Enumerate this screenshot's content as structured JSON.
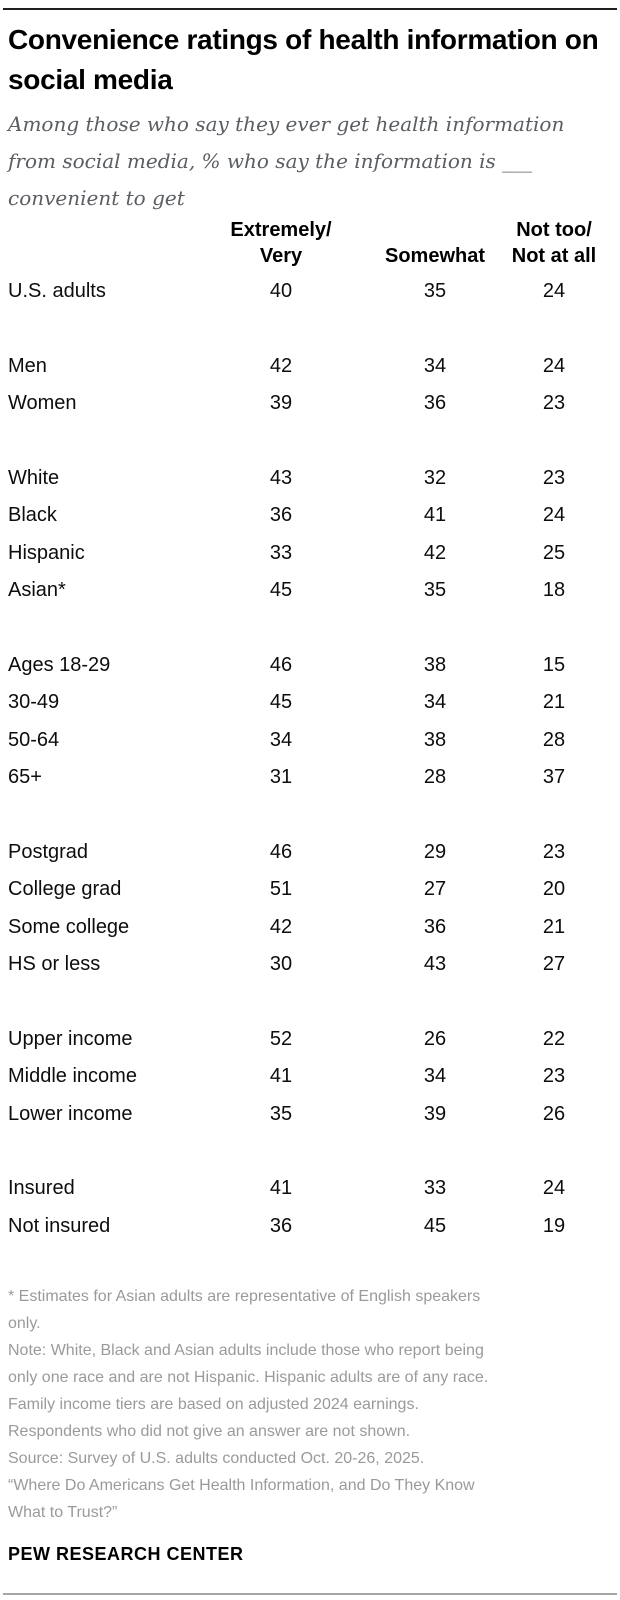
{
  "chart_data": {
    "type": "table",
    "title": "Convenience ratings of health information on social media",
    "subtitle": "Among those who say they ever get health information from social media, % who say the information is ___ convenient to get",
    "columns": [
      {
        "label": "Extremely/Very",
        "lines": [
          "Extremely/",
          "Very"
        ]
      },
      {
        "label": "Somewhat",
        "lines": [
          "Somewhat"
        ]
      },
      {
        "label": "Not too/Not at all",
        "lines": [
          "Not too/",
          "Not at all"
        ]
      }
    ],
    "groups": [
      {
        "rows": [
          {
            "label": "U.S. adults",
            "values": [
              40,
              35,
              24
            ]
          }
        ]
      },
      {
        "rows": [
          {
            "label": "Men",
            "values": [
              42,
              34,
              24
            ]
          },
          {
            "label": "Women",
            "values": [
              39,
              36,
              23
            ]
          }
        ]
      },
      {
        "rows": [
          {
            "label": "White",
            "values": [
              43,
              32,
              23
            ]
          },
          {
            "label": "Black",
            "values": [
              36,
              41,
              24
            ]
          },
          {
            "label": "Hispanic",
            "values": [
              33,
              42,
              25
            ]
          },
          {
            "label": "Asian*",
            "values": [
              45,
              35,
              18
            ]
          }
        ]
      },
      {
        "rows": [
          {
            "label": "Ages 18-29",
            "values": [
              46,
              38,
              15
            ]
          },
          {
            "label": "30-49",
            "values": [
              45,
              34,
              21
            ]
          },
          {
            "label": "50-64",
            "values": [
              34,
              38,
              28
            ]
          },
          {
            "label": "65+",
            "values": [
              31,
              28,
              37
            ]
          }
        ]
      },
      {
        "rows": [
          {
            "label": "Postgrad",
            "values": [
              46,
              29,
              23
            ]
          },
          {
            "label": "College grad",
            "values": [
              51,
              27,
              20
            ]
          },
          {
            "label": "Some college",
            "values": [
              42,
              36,
              21
            ]
          },
          {
            "label": "HS or less",
            "values": [
              30,
              43,
              27
            ]
          }
        ]
      },
      {
        "rows": [
          {
            "label": "Upper income",
            "values": [
              52,
              26,
              22
            ]
          },
          {
            "label": "Middle income",
            "values": [
              41,
              34,
              23
            ]
          },
          {
            "label": "Lower income",
            "values": [
              35,
              39,
              26
            ]
          }
        ]
      },
      {
        "rows": [
          {
            "label": "Insured",
            "values": [
              41,
              33,
              24
            ]
          },
          {
            "label": "Not insured",
            "values": [
              36,
              45,
              19
            ]
          }
        ]
      }
    ],
    "value_unit": "%",
    "grid": "off",
    "legend": "none"
  },
  "footnotes": {
    "lines": [
      "* Estimates for Asian adults are representative of English speakers",
      "only.",
      "Note: White, Black and Asian adults include those who report being",
      "only one race and are not Hispanic. Hispanic adults are of any race.",
      "Family income tiers are based on adjusted 2024 earnings.",
      "Respondents who did not give an answer are not shown.",
      "Source: Survey of U.S. adults conducted Oct. 20-26, 2025.",
      "“Where Do Americans Get Health Information, and Do They Know",
      "What to Trust?”"
    ]
  },
  "footer": {
    "brand": "PEW RESEARCH CENTER"
  },
  "colors": {
    "text": "#0d0d0d",
    "subtitle_gray": "#5a5e63",
    "note_gray": "#9a9a9a",
    "top_rule": "#1e1e1e",
    "bottom_rule": "#a6a6a6"
  }
}
